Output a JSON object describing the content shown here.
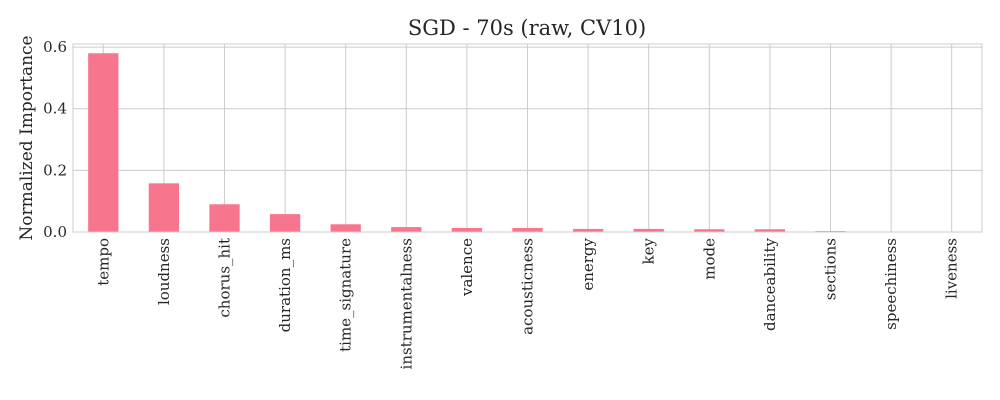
{
  "chart_data": {
    "type": "bar",
    "title": "SGD - 70s (raw, CV10)",
    "xlabel": "",
    "ylabel": "Normalized Importance",
    "categories": [
      "tempo",
      "loudness",
      "chorus_hit",
      "duration_ms",
      "time_signature",
      "instrumentalness",
      "valence",
      "acousticness",
      "energy",
      "key",
      "mode",
      "danceability",
      "sections",
      "speechiness",
      "liveness"
    ],
    "values": [
      0.58,
      0.158,
      0.09,
      0.058,
      0.025,
      0.016,
      0.013,
      0.013,
      0.01,
      0.01,
      0.009,
      0.009,
      0.003,
      0.0005,
      0.0
    ],
    "ylim": [
      0,
      0.61
    ],
    "yticks": [
      0.0,
      0.2,
      0.4,
      0.6
    ],
    "ytick_labels": [
      "0.0",
      "0.2",
      "0.4",
      "0.6"
    ],
    "grid": true,
    "bar_color": "#f7768e"
  }
}
